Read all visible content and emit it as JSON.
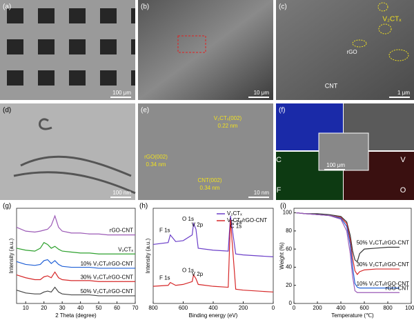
{
  "panels": [
    {
      "label": "(a)",
      "scale_bar": "100 μm",
      "annotations": []
    },
    {
      "label": "(b)",
      "scale_bar": "10 μm",
      "annotations": []
    },
    {
      "label": "(c)",
      "scale_bar": "1 μm",
      "annotations": [
        "V₂CTₓ",
        "rGO",
        "CNT"
      ]
    },
    {
      "label": "(d)",
      "scale_bar": "100 nm",
      "annotations": []
    },
    {
      "label": "(e)",
      "scale_bar": "10 nm",
      "annotations": [
        "V₂CTₓ(002)",
        "0.22 nm",
        "rGO(002)",
        "0.34 nm",
        "CNT(002)",
        "0.34 nm"
      ]
    },
    {
      "label": "(f)",
      "scale_bar": "100 μm",
      "annotations": [
        "C",
        "V",
        "F",
        "O"
      ]
    }
  ],
  "chart_data": [
    {
      "type": "line",
      "label": "(g)",
      "xlabel": "2 Theta (degree)",
      "ylabel": "Intensity (a.u.)",
      "xlim": [
        5,
        70
      ],
      "xticks": [
        10,
        20,
        30,
        40,
        50,
        60,
        70
      ],
      "ylim": [
        0,
        100
      ],
      "x": [
        5,
        10,
        15,
        18,
        20,
        22,
        24,
        26,
        28,
        30,
        35,
        40,
        45,
        50,
        55,
        60,
        65,
        70
      ],
      "series": [
        {
          "name": "rGO-CNT",
          "color": "#9b59b6",
          "values": [
            80,
            76,
            75,
            76,
            77,
            78,
            82,
            92,
            80,
            76,
            74,
            74,
            73,
            73,
            72,
            72,
            72,
            72
          ]
        },
        {
          "name": "V₂CTₓ",
          "color": "#2ca02c",
          "values": [
            58,
            56,
            55,
            58,
            64,
            62,
            58,
            60,
            57,
            55,
            54,
            53,
            53,
            52,
            52,
            52,
            52,
            52
          ]
        },
        {
          "name": "10% V₂CTₓ/rGO-CNT",
          "color": "#1f5fd6",
          "values": [
            44,
            41,
            40,
            41,
            45,
            46,
            42,
            45,
            41,
            39,
            38,
            38,
            38,
            37,
            37,
            37,
            37,
            37
          ]
        },
        {
          "name": "30% V₂CTₓ/rGO-CNT",
          "color": "#d62728",
          "values": [
            30,
            27,
            25,
            25,
            28,
            29,
            27,
            33,
            27,
            25,
            24,
            24,
            24,
            23,
            23,
            23,
            23,
            23
          ]
        },
        {
          "name": "50% V₂CTₓ/rGO-CNT",
          "color": "#444444",
          "values": [
            14,
            11,
            10,
            10,
            12,
            13,
            12,
            17,
            12,
            10,
            9,
            9,
            9,
            8,
            8,
            8,
            8,
            8
          ]
        }
      ]
    },
    {
      "type": "line",
      "label": "(h)",
      "xlabel": "Binding energy (eV)",
      "ylabel": "Intensity (a.u.)",
      "xlim": [
        800,
        0
      ],
      "xticks": [
        800,
        600,
        400,
        200,
        0
      ],
      "ylim": [
        0,
        100
      ],
      "legend": "upper right",
      "x": [
        800,
        700,
        686,
        650,
        600,
        540,
        531,
        515,
        500,
        400,
        300,
        285,
        250,
        200,
        100,
        0
      ],
      "series": [
        {
          "name": "V₂CTₓ",
          "color": "#6a3dc8",
          "values": [
            62,
            64,
            72,
            65,
            66,
            72,
            84,
            78,
            58,
            56,
            55,
            92,
            52,
            51,
            50,
            49
          ],
          "peaks": [
            {
              "label": "F 1s",
              "x": 686
            },
            {
              "label": "O 1s",
              "x": 531
            },
            {
              "label": "V 2p",
              "x": 515
            },
            {
              "label": "C 1s",
              "x": 285
            }
          ]
        },
        {
          "name": "V₂CTₓ/rGO-CNT",
          "color": "#d62728",
          "values": [
            18,
            19,
            22,
            19,
            20,
            23,
            30,
            26,
            20,
            18,
            17,
            88,
            15,
            14,
            13,
            12
          ],
          "peaks": [
            {
              "label": "F 1s",
              "x": 686
            },
            {
              "label": "O 1s",
              "x": 531
            },
            {
              "label": "V 2p",
              "x": 515
            },
            {
              "label": "C 1s",
              "x": 285
            }
          ]
        }
      ]
    },
    {
      "type": "line",
      "label": "(i)",
      "xlabel": "Temperature (℃)",
      "ylabel": "Weight (%)",
      "xlim": [
        0,
        1000
      ],
      "xticks": [
        0,
        200,
        400,
        600,
        800,
        1000
      ],
      "ylim": [
        0,
        105
      ],
      "yticks": [
        0,
        20,
        40,
        60,
        80,
        100
      ],
      "x": [
        20,
        100,
        200,
        300,
        400,
        450,
        480,
        500,
        520,
        540,
        560,
        600,
        700,
        800,
        900
      ],
      "series": [
        {
          "name": "50% V₂CTₓ/rGO-CNT",
          "color": "#333333",
          "values": [
            100,
            99,
            99,
            98,
            96,
            90,
            75,
            58,
            48,
            46,
            55,
            60,
            61,
            62,
            62
          ]
        },
        {
          "name": "30% V₂CTₓ/rGO-CNT",
          "color": "#d62728",
          "values": [
            100,
            99,
            98,
            97,
            95,
            88,
            70,
            50,
            36,
            32,
            35,
            37,
            38,
            38,
            38
          ]
        },
        {
          "name": "10% V₂CTₓ/rGO-CNT",
          "color": "#1f5fd6",
          "values": [
            100,
            99,
            98,
            97,
            94,
            85,
            65,
            40,
            22,
            18,
            17,
            17,
            17,
            17,
            17
          ]
        },
        {
          "name": "rGO-CNT",
          "color": "#9b59b6",
          "values": [
            100,
            99,
            98,
            97,
            93,
            80,
            55,
            30,
            14,
            12,
            12,
            12,
            12,
            12,
            12
          ]
        }
      ]
    }
  ]
}
